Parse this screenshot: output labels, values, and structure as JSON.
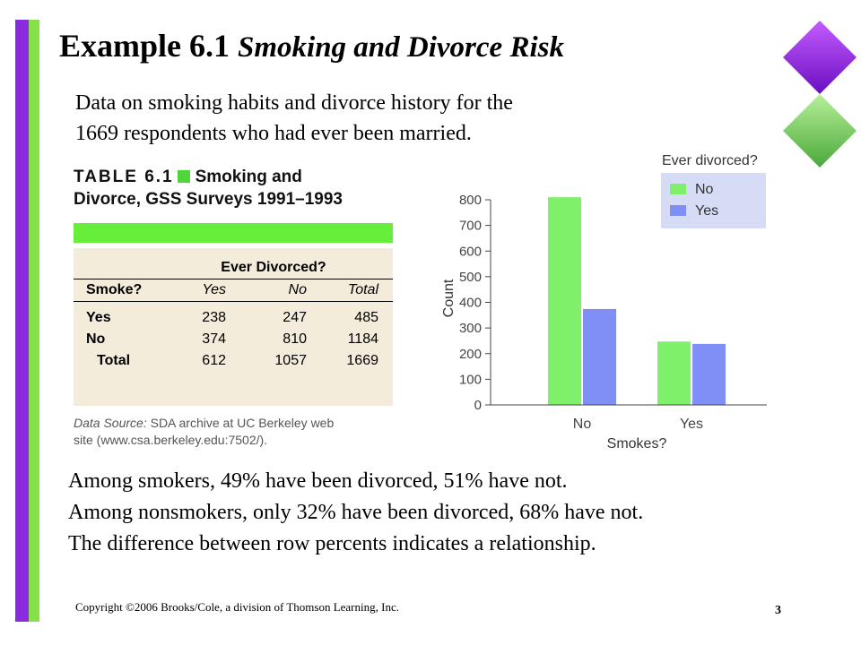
{
  "slide": {
    "title_main": "Example 6.1",
    "title_sub": "Smoking and Divorce Risk",
    "intro_lines": [
      "Data on smoking habits and divorce history for the",
      "1669 respondents who had ever been married."
    ],
    "body_lines": [
      "Among smokers, 49% have been divorced, 51% have not.",
      "Among nonsmokers, only 32% have been divorced, 68% have not.",
      "The difference between row percents indicates a relationship."
    ],
    "footer": "Copyright ©2006 Brooks/Cole, a division of Thomson Learning, Inc.",
    "page_number": "3",
    "colors": {
      "purple": "#8a2be2",
      "green": "#86e04a"
    }
  },
  "table": {
    "label": "TABLE 6.1",
    "title_part1": "Smoking and",
    "title_part2": "Divorce, GSS Surveys 1991–1993",
    "group_header": "Ever Divorced?",
    "columns": [
      "Smoke?",
      "Yes",
      "No",
      "Total"
    ],
    "rows": [
      [
        "Yes",
        "238",
        "247",
        "485"
      ],
      [
        "No",
        "374",
        "810",
        "1184"
      ],
      [
        "Total",
        "612",
        "1057",
        "1669"
      ]
    ],
    "source_label": "Data Source:",
    "source_text_1": "SDA archive at UC Berkeley web",
    "source_text_2": "site (www.csa.berkeley.edu:7502/)."
  },
  "chart_data": {
    "type": "bar",
    "categories": [
      "No",
      "Yes"
    ],
    "series": [
      {
        "name": "No",
        "values": [
          810,
          247
        ],
        "color": "#7ff06a"
      },
      {
        "name": "Yes",
        "values": [
          374,
          238
        ],
        "color": "#7f8ff6"
      }
    ],
    "xlabel": "Smokes?",
    "ylabel": "Count",
    "ylim": [
      0,
      800
    ],
    "yticks": [
      0,
      100,
      200,
      300,
      400,
      500,
      600,
      700,
      800
    ],
    "legend_title": "Ever divorced?",
    "legend_placement": "top-right",
    "grid": false
  }
}
